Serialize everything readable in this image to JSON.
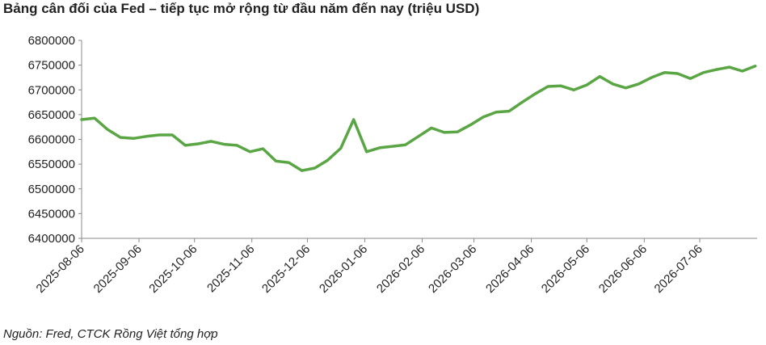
{
  "chart_data": {
    "type": "line",
    "title": "Bảng cân đối của Fed – tiếp tục mở rộng từ đầu năm đến nay (triệu USD)",
    "note": "Nguồn: Fred, CTCK Rồng Việt tổng hợp",
    "x": [
      "2025-08-06",
      "2025-08-13",
      "2025-08-20",
      "2025-08-27",
      "2025-09-03",
      "2025-09-10",
      "2025-09-17",
      "2025-09-24",
      "2025-10-01",
      "2025-10-08",
      "2025-10-15",
      "2025-10-22",
      "2025-10-29",
      "2025-11-05",
      "2025-11-12",
      "2025-11-19",
      "2025-11-26",
      "2025-12-03",
      "2025-12-10",
      "2025-12-17",
      "2025-12-24",
      "2025-12-31",
      "2026-01-07",
      "2026-01-14",
      "2026-01-21",
      "2026-01-28",
      "2026-02-04",
      "2026-02-11",
      "2026-02-18",
      "2026-02-25",
      "2026-03-04",
      "2026-03-11",
      "2026-03-18",
      "2026-03-25",
      "2026-04-01",
      "2026-04-08",
      "2026-04-15",
      "2026-04-22",
      "2026-04-29",
      "2026-05-06",
      "2026-05-13",
      "2026-05-20",
      "2026-05-27",
      "2026-06-03",
      "2026-06-10",
      "2026-06-17",
      "2026-06-24",
      "2026-07-01",
      "2026-07-08",
      "2026-07-15",
      "2026-07-22",
      "2026-07-29",
      "2026-08-05"
    ],
    "series": [
      {
        "color": "#5aa544",
        "values": [
          6640000,
          6643000,
          6620000,
          6604000,
          6602000,
          6606000,
          6609000,
          6609000,
          6588000,
          6591000,
          6596000,
          6590000,
          6588000,
          6575000,
          6581000,
          6556000,
          6553000,
          6537000,
          6542000,
          6558000,
          6582000,
          6640000,
          6575000,
          6583000,
          6586000,
          6589000,
          6606000,
          6623000,
          6614000,
          6615000,
          6629000,
          6645000,
          6655000,
          6657000,
          6675000,
          6692000,
          6707000,
          6708000,
          6700000,
          6710000,
          6727000,
          6712000,
          6704000,
          6712000,
          6725000,
          6735000,
          6733000,
          6723000,
          6735000,
          6741000,
          6746000,
          6738000,
          6748000
        ]
      }
    ],
    "xlim": [
      "2025-08-06",
      "2026-08-06"
    ],
    "xticks": [
      "2025-08-06",
      "2025-09-06",
      "2025-10-06",
      "2025-11-06",
      "2025-12-06",
      "2026-01-06",
      "2026-02-06",
      "2026-03-06",
      "2026-04-06",
      "2026-05-06",
      "2026-06-06",
      "2026-07-06"
    ],
    "ylim": [
      6400000,
      6800000
    ],
    "yticks": [
      6400000,
      6450000,
      6500000,
      6550000,
      6600000,
      6650000,
      6700000,
      6750000,
      6800000
    ],
    "grid": false
  }
}
